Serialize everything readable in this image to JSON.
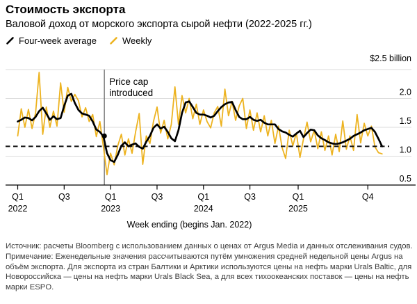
{
  "header": {
    "title": "Стоимость экспорта",
    "subtitle": "Валовой доход от морского экспорта сырой нефти (2022-2025 гг.)"
  },
  "legend": {
    "items": [
      {
        "label": "Four-week average",
        "color": "#000000"
      },
      {
        "label": "Weekly",
        "color": "#EDB320"
      }
    ]
  },
  "chart_data": {
    "type": "line",
    "title": "Валовой доход от морского экспорта сырой нефти (2022-2025 гг.)",
    "unit_top_label": "$2.5 billion",
    "xlabel": "Week ending (begins Jan. 2022)",
    "x_unit": "week index since first week of Jan. 2022 (each value = 2 weeks)",
    "week_step": 2,
    "ylim": [
      0.5,
      2.5
    ],
    "grid": true,
    "legend_position": "top-left",
    "y_gridlines": [
      0.5,
      1.0,
      1.5,
      2.0,
      2.5
    ],
    "y_tick_labels": [
      "0.5",
      "1.0",
      "1.5",
      "2.0"
    ],
    "x_ticks": [
      {
        "label": "Q1",
        "year": "2022",
        "week": 0
      },
      {
        "label": "Q3",
        "year": "",
        "week": 26
      },
      {
        "label": "Q1",
        "year": "2023",
        "week": 52
      },
      {
        "label": "Q3",
        "year": "",
        "week": 78
      },
      {
        "label": "Q1",
        "year": "2024",
        "week": 104
      },
      {
        "label": "Q3",
        "year": "",
        "week": 130
      },
      {
        "label": "Q1",
        "year": "2025",
        "week": 157
      },
      {
        "label": "Q4",
        "year": "",
        "week": 196
      }
    ],
    "reference_line": {
      "value": 1.17,
      "style": "dashed",
      "color": "#111111"
    },
    "event_annotation": {
      "line1": "Price cap",
      "line2": "introduced",
      "week": 48.5,
      "dot_value": 1.35
    },
    "series": [
      {
        "name": "Weekly",
        "color": "#EDB320",
        "stroke_width": 1.8,
        "values": [
          1.35,
          1.82,
          1.5,
          1.81,
          1.48,
          1.75,
          2.45,
          1.38,
          1.85,
          1.5,
          1.78,
          1.52,
          2.27,
          1.76,
          2.19,
          1.95,
          2.07,
          1.96,
          1.68,
          1.84,
          1.6,
          1.72,
          1.34,
          1.6,
          1.15,
          0.68,
          1.05,
          0.85,
          1.18,
          1.38,
          1.02,
          1.3,
          1.05,
          1.42,
          1.74,
          0.86,
          1.35,
          1.22,
          1.6,
          1.85,
          1.4,
          1.62,
          1.3,
          1.55,
          2.2,
          1.55,
          2.05,
          1.75,
          2.0,
          1.65,
          1.9,
          1.55,
          1.8,
          1.6,
          1.49,
          1.75,
          1.86,
          1.52,
          2.16,
          1.7,
          1.95,
          1.62,
          1.87,
          2.0,
          1.48,
          1.8,
          1.45,
          1.75,
          1.42,
          1.7,
          1.35,
          1.62,
          1.22,
          1.52,
          1.15,
          0.96,
          1.45,
          1.18,
          1.4,
          0.98,
          1.3,
          1.59,
          1.25,
          1.45,
          1.13,
          1.42,
          1.1,
          1.35,
          1.02,
          1.38,
          1.08,
          1.61,
          1.12,
          1.35,
          1.1,
          1.72,
          1.23,
          1.57,
          1.35,
          1.52,
          1.16,
          1.06,
          1.04
        ]
      },
      {
        "name": "Four-week average",
        "color": "#000000",
        "stroke_width": 2.7,
        "values": [
          1.6,
          1.63,
          1.67,
          1.66,
          1.62,
          1.68,
          1.78,
          1.84,
          1.74,
          1.63,
          1.69,
          1.64,
          1.66,
          1.87,
          2.05,
          2.08,
          1.92,
          1.8,
          1.74,
          1.72,
          1.7,
          1.6,
          1.46,
          1.42,
          1.34,
          1.05,
          0.93,
          0.9,
          1.02,
          1.18,
          1.24,
          1.17,
          1.2,
          1.22,
          1.16,
          1.13,
          1.25,
          1.35,
          1.49,
          1.55,
          1.48,
          1.51,
          1.42,
          1.31,
          1.26,
          1.45,
          1.75,
          1.93,
          1.95,
          1.85,
          1.75,
          1.72,
          1.72,
          1.7,
          1.67,
          1.7,
          1.78,
          1.85,
          1.9,
          1.93,
          1.94,
          1.8,
          1.68,
          1.64,
          1.64,
          1.68,
          1.63,
          1.61,
          1.63,
          1.58,
          1.55,
          1.55,
          1.55,
          1.47,
          1.43,
          1.41,
          1.37,
          1.34,
          1.39,
          1.44,
          1.33,
          1.4,
          1.46,
          1.45,
          1.36,
          1.31,
          1.28,
          1.24,
          1.22,
          1.21,
          1.22,
          1.24,
          1.27,
          1.3,
          1.35,
          1.38,
          1.41,
          1.45,
          1.47,
          1.49,
          1.42,
          1.3,
          1.17
        ]
      }
    ]
  },
  "axis_caption": "Week ending (begins Jan. 2022)",
  "footer": {
    "source": "Источник: расчеты Bloomberg с использованием данных о ценах от Argus Media и данных отслеживания судов.",
    "note": "Примечание: Еженедельные значения рассчитываются путём умножения средней недельной цены Argus на объём экспорта. Для экспорта из стран Балтики и Арктики используются цены на нефть марки Urals Baltic, для Новороссийска — цены на нефть марки Urals Black Sea, а для всех тихоокеанских поставок — цены на нефть марки ESPO."
  }
}
